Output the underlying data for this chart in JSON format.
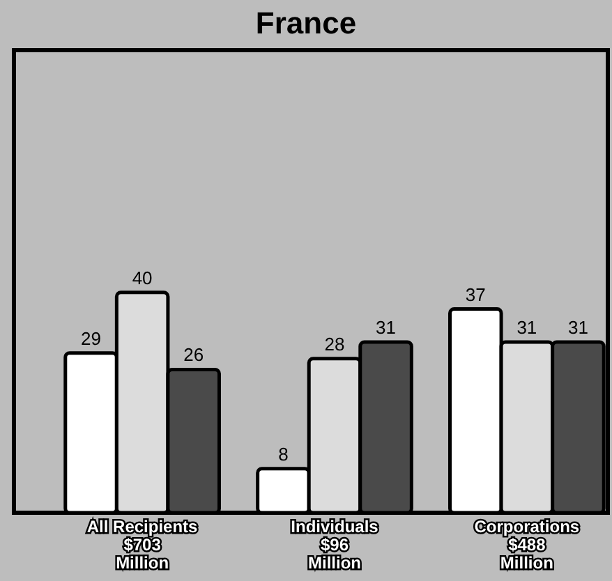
{
  "chart_data": {
    "type": "bar",
    "title": "France",
    "categories": [
      "All Recipients\n$703\nMillion",
      "Individuals\n$96\nMillion",
      "Corporations\n$488\nMillion"
    ],
    "series": [
      {
        "color": "#ffffff",
        "values": [
          29,
          8,
          37
        ]
      },
      {
        "color": "#dcdcdc",
        "values": [
          40,
          28,
          31
        ]
      },
      {
        "color": "#4a4a4a",
        "values": [
          26,
          31,
          31
        ]
      }
    ],
    "data_labels": true
  }
}
